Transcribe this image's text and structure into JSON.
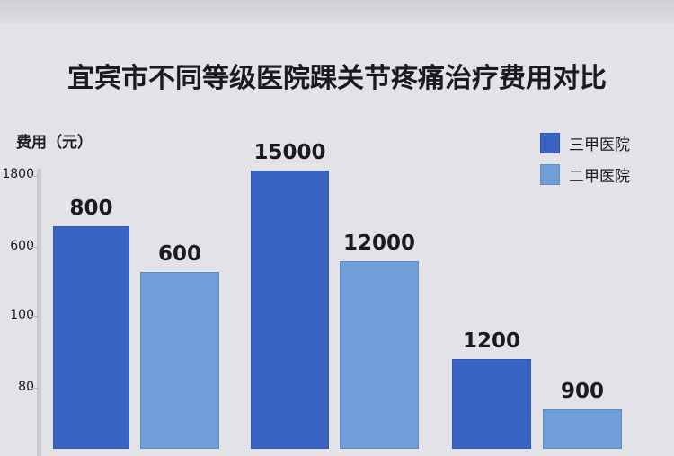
{
  "chart_data": {
    "type": "bar",
    "title": "宜宾市不同等级医院踝关节疼痛治疗费用对比",
    "ylabel": "费用（元）",
    "y_tick_labels": [
      "1800",
      "600",
      "100",
      "80"
    ],
    "grid": false,
    "legend_position": "top-right",
    "series": [
      {
        "name": "三甲医院",
        "color": "#3a64c4",
        "values": [
          800,
          15000,
          1200
        ]
      },
      {
        "name": "二甲医院",
        "color": "#6f9ed8",
        "values": [
          600,
          12000,
          900
        ]
      }
    ]
  }
}
